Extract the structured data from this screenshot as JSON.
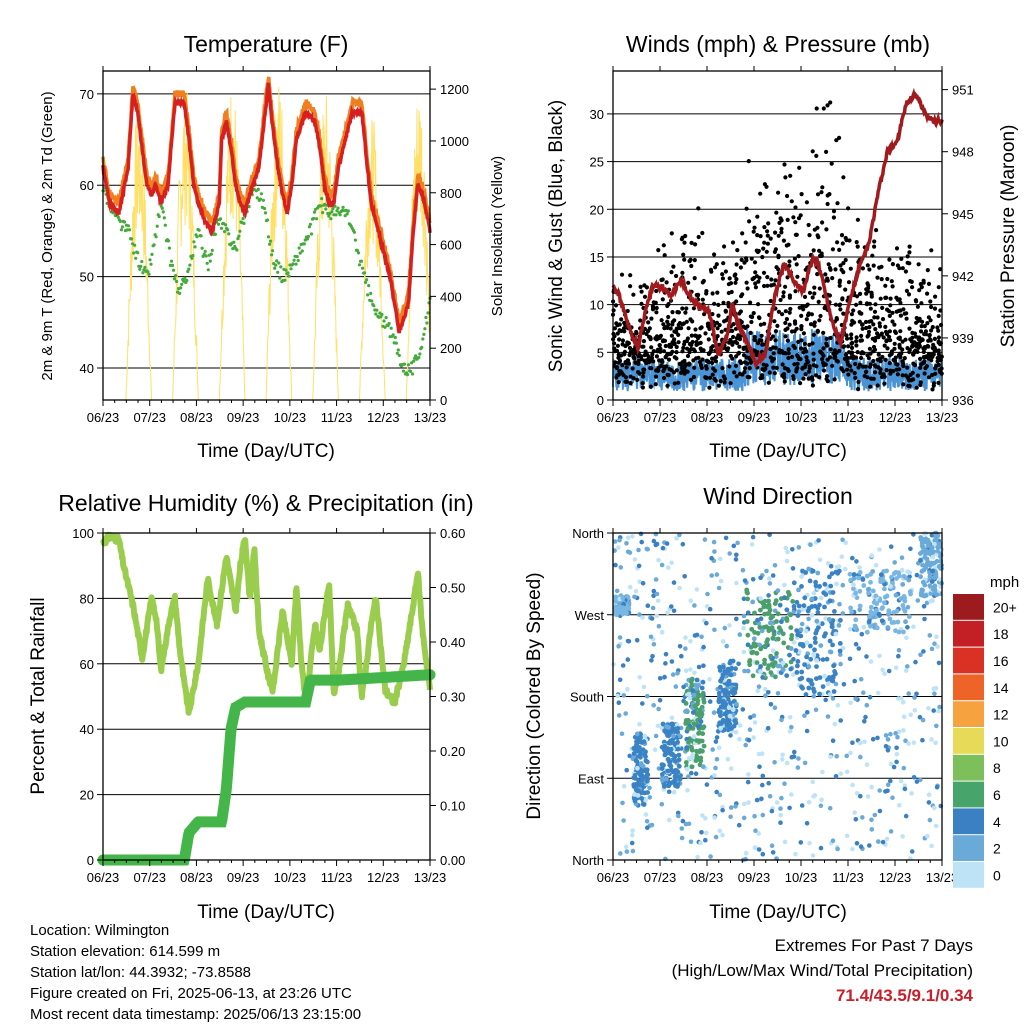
{
  "figure": {
    "station": {
      "location": "Location: Wilmington",
      "elevation": "Station elevation: 614.599 m",
      "latlon": "Station lat/lon: 44.3932; -73.8588",
      "created": "Figure created on Fri, 2025-06-13, at 23:26 UTC",
      "recent": "Most recent data timestamp: 2025/06/13 23:15:00"
    },
    "extremes": {
      "title": "Extremes For Past 7 Days",
      "subtitle": "(High/Low/Max Wind/Total Precipitation)",
      "values": "71.4/43.5/9.1/0.34"
    },
    "colors": {
      "temp2m": "#d62020",
      "temp9m": "#f07f20",
      "dewpoint": "#44aa3a",
      "solar": "#ffe066",
      "wind": "#4a93d4",
      "gust": "#000000",
      "pressure": "#a11a1e",
      "rh": "#9acd4e",
      "precip": "#44b649"
    }
  },
  "chart_data": [
    {
      "type": "line",
      "title": "Temperature (F)",
      "xlabel": "Time (Day/UTC)",
      "ylabel_left": "2m & 9m T (Red, Orange) & 2m Td (Green)",
      "ylabel_right": "Solar Insolation (Yellow)",
      "x_ticks": [
        "06/23",
        "07/23",
        "08/23",
        "09/23",
        "10/23",
        "11/23",
        "12/23",
        "13/23"
      ],
      "xlim": [
        6.96,
        13.96
      ],
      "ylim": [
        36.5,
        72.5
      ],
      "ylim_right": [
        0,
        1270
      ],
      "y_ticks": [
        40,
        50,
        60,
        70
      ],
      "y_ticks_right": [
        0,
        200,
        400,
        600,
        800,
        1000,
        1200
      ],
      "series": [
        {
          "name": "2m T",
          "color": "#d62020",
          "x": [
            6.96,
            7.1,
            7.3,
            7.5,
            7.6,
            7.7,
            7.8,
            7.9,
            8.0,
            8.1,
            8.2,
            8.35,
            8.5,
            8.7,
            8.8,
            8.9,
            9.0,
            9.15,
            9.3,
            9.45,
            9.5,
            9.6,
            9.7,
            9.8,
            9.9,
            10.0,
            10.1,
            10.3,
            10.5,
            10.6,
            10.7,
            10.8,
            10.9,
            11.0,
            11.1,
            11.3,
            11.5,
            11.6,
            11.7,
            11.8,
            11.9,
            12.0,
            12.1,
            12.3,
            12.5,
            12.6,
            12.7,
            12.8,
            12.9,
            13.0,
            13.1,
            13.3,
            13.5,
            13.6,
            13.7,
            13.8,
            13.96
          ],
          "y": [
            62,
            58,
            57,
            62,
            70,
            68,
            64,
            60,
            59,
            60,
            58,
            60,
            69,
            69,
            65,
            60,
            58,
            56,
            55,
            58,
            65,
            67,
            64,
            60,
            58,
            57,
            59,
            62,
            71,
            66,
            62,
            59,
            57,
            60,
            65,
            68,
            67,
            64,
            60,
            58,
            58,
            62,
            64,
            68,
            68,
            63,
            58,
            56,
            54,
            52,
            50,
            44,
            47,
            55,
            60,
            59,
            55
          ]
        },
        {
          "name": "Td",
          "color": "#44aa3a",
          "x": [
            6.96,
            7.1,
            7.3,
            7.5,
            7.7,
            7.9,
            8.0,
            8.2,
            8.4,
            8.6,
            8.8,
            9.0,
            9.2,
            9.4,
            9.6,
            9.8,
            10.0,
            10.2,
            10.4,
            10.6,
            10.8,
            11.0,
            11.2,
            11.4,
            11.6,
            11.8,
            12.0,
            12.2,
            12.4,
            12.6,
            12.8,
            13.0,
            13.2,
            13.4,
            13.6,
            13.8,
            13.96
          ],
          "y": [
            60,
            58,
            56,
            55,
            52,
            50,
            52,
            58,
            52,
            48,
            51,
            55,
            51,
            56,
            55,
            53,
            57,
            60,
            58,
            52,
            50,
            51,
            53,
            55,
            58,
            57,
            57,
            57,
            53,
            49,
            46,
            45,
            43,
            40,
            40,
            43,
            47
          ]
        }
      ],
      "solar_days": [
        7.0,
        8.0,
        9.0,
        10.0,
        11.0,
        12.0,
        13.0
      ],
      "solar_peaks": [
        1150,
        1220,
        1250,
        1260,
        1200,
        1100,
        1240
      ]
    },
    {
      "type": "scatter",
      "title": "Winds (mph) & Pressure (mb)",
      "xlabel": "Time (Day/UTC)",
      "ylabel_left": "Sonic Wind & Gust (Blue, Black)",
      "ylabel_right": "Station Pressure (Maroon)",
      "x_ticks": [
        "06/23",
        "07/23",
        "08/23",
        "09/23",
        "10/23",
        "11/23",
        "12/23",
        "13/23"
      ],
      "xlim": [
        6.96,
        13.96
      ],
      "ylim": [
        0,
        34.5
      ],
      "ylim_right": [
        936,
        951.9
      ],
      "y_ticks": [
        0,
        5,
        10,
        15,
        20,
        25,
        30
      ],
      "y_ticks_right": [
        936,
        939,
        942,
        945,
        948,
        951
      ],
      "pressure": {
        "x": [
          6.96,
          7.1,
          7.3,
          7.5,
          7.6,
          7.8,
          8.0,
          8.2,
          8.4,
          8.6,
          8.8,
          9.0,
          9.2,
          9.4,
          9.5,
          9.6,
          9.8,
          10.0,
          10.2,
          10.4,
          10.6,
          10.8,
          11.0,
          11.2,
          11.3,
          11.4,
          11.6,
          11.8,
          12.0,
          12.2,
          12.4,
          12.6,
          12.8,
          13.0,
          13.2,
          13.4,
          13.6,
          13.8,
          13.96
        ],
        "y": [
          941.5,
          941,
          939.5,
          938.5,
          939.8,
          941.5,
          941.5,
          941,
          941.8,
          941,
          940.5,
          940.3,
          938.2,
          939.2,
          940.7,
          939.8,
          938.8,
          937.8,
          938.2,
          941,
          942.6,
          941.8,
          941.2,
          942.8,
          942.7,
          942,
          940,
          938.7,
          940.8,
          942.4,
          943.5,
          946,
          948,
          948.5,
          950.3,
          950.8,
          949.8,
          949.5,
          949.5
        ]
      },
      "gust_peaks": [
        [
          7.3,
          11
        ],
        [
          7.7,
          13
        ],
        [
          8.8,
          20
        ],
        [
          9.2,
          15
        ],
        [
          9.5,
          19
        ],
        [
          10.6,
          31
        ],
        [
          10.8,
          26
        ],
        [
          11.4,
          31
        ],
        [
          11.7,
          32.5
        ],
        [
          12.0,
          22
        ],
        [
          12.5,
          17
        ],
        [
          13.8,
          13
        ]
      ],
      "wind_mean_approx": 3.5
    },
    {
      "type": "line",
      "title": "Relative Humidity (%) & Precipitation (in)",
      "xlabel": "Time (Day/UTC)",
      "ylabel_left": "Percent & Total Rainfall",
      "x_ticks": [
        "06/23",
        "07/23",
        "08/23",
        "09/23",
        "10/23",
        "11/23",
        "12/23",
        "13/23"
      ],
      "xlim": [
        6.96,
        13.96
      ],
      "ylim": [
        0,
        100
      ],
      "ylim_right": [
        0,
        0.6
      ],
      "y_ticks": [
        0,
        20,
        40,
        60,
        80,
        100
      ],
      "y_ticks_right": [
        "0.00",
        "0.10",
        "0.20",
        "0.30",
        "0.40",
        "0.50",
        "0.60"
      ],
      "rh": {
        "x": [
          6.96,
          7.1,
          7.3,
          7.4,
          7.5,
          7.6,
          7.7,
          7.8,
          8.0,
          8.1,
          8.2,
          8.4,
          8.5,
          8.6,
          8.7,
          8.8,
          9.0,
          9.2,
          9.4,
          9.6,
          9.8,
          9.9,
          10.0,
          10.1,
          10.2,
          10.3,
          10.5,
          10.6,
          10.8,
          11.0,
          11.1,
          11.2,
          11.3,
          11.5,
          11.6,
          11.8,
          11.9,
          12.0,
          12.2,
          12.4,
          12.5,
          12.6,
          12.7,
          12.8,
          13.0,
          13.2,
          13.4,
          13.6,
          13.7,
          13.8,
          13.96
        ],
        "y": [
          97,
          99,
          98,
          90,
          84,
          78,
          70,
          62,
          80,
          74,
          58,
          75,
          80,
          65,
          54,
          45,
          60,
          86,
          72,
          93,
          76,
          90,
          99,
          80,
          95,
          70,
          56,
          52,
          76,
          60,
          84,
          62,
          48,
          72,
          64,
          85,
          50,
          57,
          78,
          70,
          50,
          60,
          72,
          80,
          52,
          48,
          60,
          78,
          88,
          70,
          52
        ]
      },
      "precip": {
        "x": [
          6.96,
          8.7,
          8.8,
          9.0,
          9.5,
          9.6,
          9.7,
          9.8,
          10.0,
          10.2,
          11.3,
          11.4,
          12.0,
          13.96
        ],
        "y": [
          0,
          0,
          0.05,
          0.07,
          0.07,
          0.13,
          0.24,
          0.28,
          0.29,
          0.29,
          0.29,
          0.33,
          0.33,
          0.34
        ]
      }
    },
    {
      "type": "scatter",
      "title": "Wind Direction",
      "xlabel": "Time (Day/UTC)",
      "ylabel_left": "Direction (Colored By Speed)",
      "x_ticks": [
        "06/23",
        "07/23",
        "08/23",
        "09/23",
        "10/23",
        "11/23",
        "12/23",
        "13/23"
      ],
      "xlim": [
        6.96,
        13.96
      ],
      "y_categories": [
        "North",
        "East",
        "South",
        "West",
        "North"
      ],
      "ylim": [
        0,
        360
      ],
      "clusters": [
        {
          "x": [
            7.0,
            7.3
          ],
          "dir": [
            270,
            290
          ],
          "color": "#79b7e2"
        },
        {
          "x": [
            7.4,
            7.7
          ],
          "dir": [
            60,
            140
          ],
          "color": "#3a83c4"
        },
        {
          "x": [
            8.0,
            8.4
          ],
          "dir": [
            80,
            150
          ],
          "color": "#3a83c4"
        },
        {
          "x": [
            8.5,
            8.9
          ],
          "dir": [
            100,
            200
          ],
          "color": "#4a9f6a"
        },
        {
          "x": [
            9.2,
            9.6
          ],
          "dir": [
            140,
            220
          ],
          "color": "#3a83c4"
        },
        {
          "x": [
            9.8,
            10.8
          ],
          "dir": [
            200,
            300
          ],
          "color": "#4a9f6a"
        },
        {
          "x": [
            10.8,
            11.8
          ],
          "dir": [
            180,
            320
          ],
          "color": "#3a83c4"
        },
        {
          "x": [
            12.0,
            13.3
          ],
          "dir": [
            250,
            320
          ],
          "color": "#79b7e2"
        },
        {
          "x": [
            13.5,
            13.96
          ],
          "dir": [
            290,
            360
          ],
          "color": "#6aaad9"
        }
      ],
      "legend": {
        "title": "mph",
        "levels": [
          "20+",
          "18",
          "16",
          "14",
          "12",
          "10",
          "8",
          "6",
          "4",
          "2",
          "0"
        ],
        "colors": [
          "#9b1b1f",
          "#c22025",
          "#da3125",
          "#ee6428",
          "#f6a23e",
          "#e6da58",
          "#7dbf5a",
          "#47a46b",
          "#3a80c2",
          "#6aaad9",
          "#bfe3f6"
        ]
      }
    }
  ]
}
